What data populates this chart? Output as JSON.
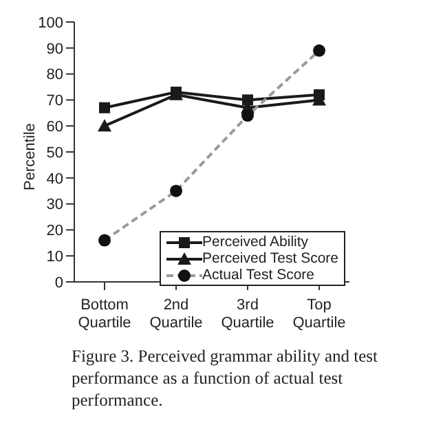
{
  "chart_data": {
    "type": "line",
    "ylabel": "Percentile",
    "categories": [
      "Bottom Quartile",
      "2nd Quartile",
      "3rd Quartile",
      "Top Quartile"
    ],
    "series": [
      {
        "name": "Perceived Ability",
        "color": "#1a1a1a",
        "values": [
          67,
          73,
          70,
          72
        ],
        "marker": "square",
        "line_style": "solid"
      },
      {
        "name": "Perceived Test Score",
        "color": "#1a1a1a",
        "values": [
          60,
          72,
          67,
          70
        ],
        "marker": "triangle",
        "line_style": "solid"
      },
      {
        "name": "Actual Test Score",
        "color": "#9a9a9a",
        "values": [
          16,
          35,
          64,
          89
        ],
        "marker": "circle",
        "line_style": "dashed"
      }
    ],
    "ylim": [
      0,
      100
    ],
    "yticks": [
      0,
      10,
      20,
      30,
      40,
      50,
      60,
      70,
      80,
      90,
      100
    ],
    "grid": false,
    "legend": "bottom right",
    "annotations": [
      "Figure 3. Perceived grammar ability and test performance as a function of actual test performance."
    ]
  }
}
